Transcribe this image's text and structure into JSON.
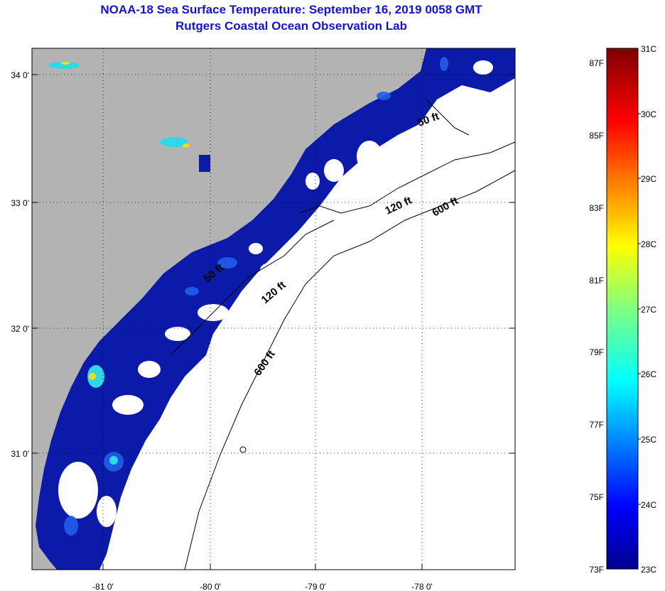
{
  "title": {
    "line1": "NOAA-18 Sea Surface Temperature:  September 16, 2019 0058 GMT",
    "line2": "Rutgers Coastal Ocean Observation Lab"
  },
  "map": {
    "lat_labels": [
      "34 0'",
      "33 0'",
      "32 0'",
      "31 0'"
    ],
    "lon_labels": [
      "-81 0'",
      "-80 0'",
      "-79 0'",
      "-78 0'"
    ],
    "contour_labels": [
      "50 ft",
      "120 ft",
      "600 ft",
      "120 ft",
      "600 ft",
      "50 ft"
    ],
    "colors": {
      "land": "#b3b3b3",
      "ocean_cloud": "#ffffff",
      "sst_dark": "#0b1aa8",
      "sst_mid": "#1f5ee8"
    }
  },
  "colorbar": {
    "fahrenheit": [
      "87F",
      "85F",
      "83F",
      "81F",
      "79F",
      "77F",
      "75F",
      "73F"
    ],
    "celsius": [
      "31C",
      "30C",
      "29C",
      "28C",
      "27C",
      "26C",
      "25C",
      "24C",
      "23C"
    ]
  }
}
